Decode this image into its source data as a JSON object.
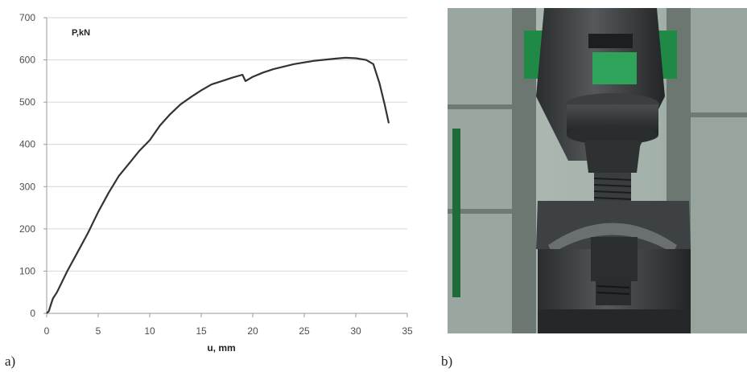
{
  "chart_data": {
    "type": "line",
    "ylabel": "P,kN",
    "xlabel": "u, mm",
    "xlim": [
      0,
      35
    ],
    "ylim": [
      0,
      700
    ],
    "xticks": [
      "0",
      "5",
      "10",
      "15",
      "20",
      "25",
      "30",
      "35"
    ],
    "yticks": [
      "0",
      "100",
      "200",
      "300",
      "400",
      "500",
      "600",
      "700"
    ],
    "grid": "horizontal",
    "series": [
      {
        "color": "#333333",
        "points": [
          [
            0,
            0
          ],
          [
            0.2,
            5
          ],
          [
            0.4,
            20
          ],
          [
            0.6,
            35
          ],
          [
            1,
            50
          ],
          [
            2,
            100
          ],
          [
            3,
            145
          ],
          [
            4,
            190
          ],
          [
            5,
            240
          ],
          [
            6,
            285
          ],
          [
            7,
            325
          ],
          [
            8,
            355
          ],
          [
            9,
            385
          ],
          [
            10,
            410
          ],
          [
            11,
            445
          ],
          [
            12,
            472
          ],
          [
            13,
            495
          ],
          [
            14,
            512
          ],
          [
            15,
            528
          ],
          [
            16,
            542
          ],
          [
            17,
            550
          ],
          [
            18,
            558
          ],
          [
            19,
            565
          ],
          [
            19.3,
            550
          ],
          [
            20,
            560
          ],
          [
            21,
            570
          ],
          [
            22,
            578
          ],
          [
            24,
            590
          ],
          [
            26,
            598
          ],
          [
            28,
            603
          ],
          [
            29,
            605
          ],
          [
            30,
            604
          ],
          [
            31,
            600
          ],
          [
            31.7,
            590
          ],
          [
            32.3,
            545
          ],
          [
            32.8,
            495
          ],
          [
            33.2,
            450
          ]
        ]
      }
    ]
  },
  "panels": {
    "a": "a)",
    "b": "b)"
  }
}
